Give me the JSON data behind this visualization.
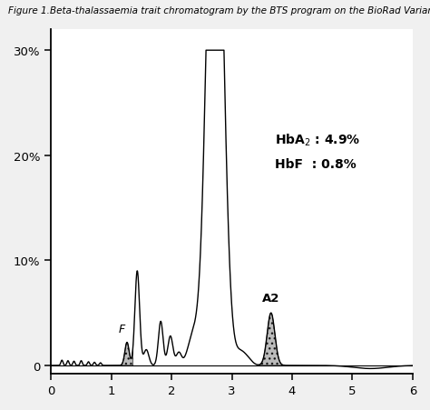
{
  "title_fig": "Figure 1.",
  "title_rest": "     Beta-thalassaemia trait chromatogram by the BTS program on the BioRad Variant",
  "xlim": [
    0,
    6
  ],
  "ylim": [
    -0.8,
    32
  ],
  "yticks": [
    0,
    10,
    20,
    30
  ],
  "ytick_labels": [
    "0",
    "10%",
    "20%",
    "30%"
  ],
  "xticks": [
    0,
    1,
    2,
    3,
    4,
    5,
    6
  ],
  "label_F": "F",
  "label_A2": "A2",
  "line_color": "#000000",
  "bg_color": "#f0f0f0",
  "plot_bg_color": "#ffffff",
  "annot_hba2": "HbA$_2$ : 4.9%",
  "annot_hbf": "HbF  : 0.8%"
}
